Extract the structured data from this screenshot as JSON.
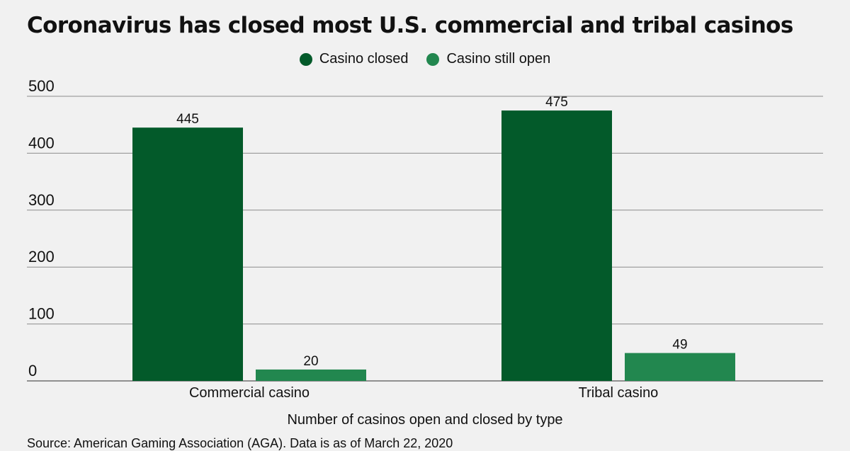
{
  "chart_data": {
    "type": "bar",
    "title": "Coronavirus has closed most U.S. commercial and tribal casinos",
    "categories": [
      "Commercial casino",
      "Tribal casino"
    ],
    "series": [
      {
        "name": "Casino closed",
        "values": [
          445,
          475
        ],
        "color": "#035a2a"
      },
      {
        "name": "Casino still open",
        "values": [
          20,
          49
        ],
        "color": "#22874f"
      }
    ],
    "xlabel": "Number of casinos open and closed by type",
    "ylabel": "",
    "ylim": [
      0,
      500
    ],
    "yticks": [
      0,
      100,
      200,
      300,
      400,
      500
    ],
    "grid": true,
    "legend_position": "top-center",
    "source": "Source: American Gaming Association (AGA). Data is as of March 22, 2020"
  }
}
